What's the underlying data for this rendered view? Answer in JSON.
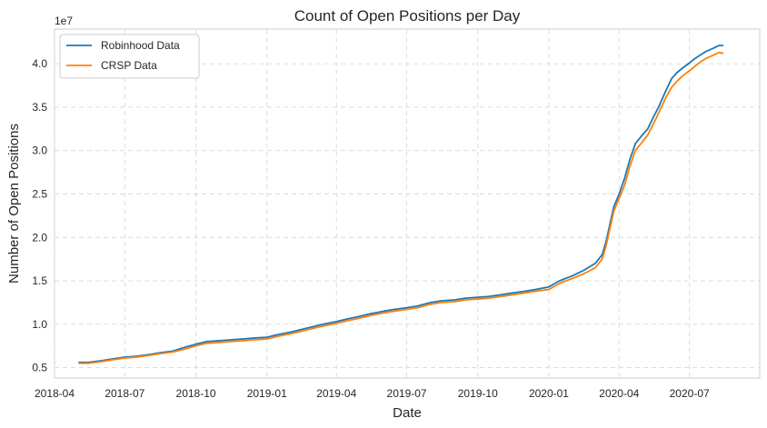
{
  "chart_data": {
    "type": "line",
    "title": "Count of Open Positions per Day",
    "xlabel": "Date",
    "ylabel": "Number of Open Positions",
    "y_multiplier_label": "1e7",
    "xlim": [
      "2018-04-01",
      "2020-09-30"
    ],
    "ylim": [
      3.8,
      44.0
    ],
    "x_ticks": [
      "2018-04",
      "2018-07",
      "2018-10",
      "2019-01",
      "2019-04",
      "2019-07",
      "2019-10",
      "2020-01",
      "2020-04",
      "2020-07"
    ],
    "y_ticks": [
      {
        "value": 5,
        "label": "0.5"
      },
      {
        "value": 10,
        "label": "1.0"
      },
      {
        "value": 15,
        "label": "1.5"
      },
      {
        "value": 20,
        "label": "2.0"
      },
      {
        "value": 25,
        "label": "2.5"
      },
      {
        "value": 30,
        "label": "3.0"
      },
      {
        "value": 35,
        "label": "3.5"
      },
      {
        "value": 40,
        "label": "4.0"
      }
    ],
    "grid": true,
    "legend_position": "top-left",
    "series": [
      {
        "name": "Robinhood Data",
        "color": "#1f77b4",
        "points": [
          [
            "2018-05-02",
            5.6
          ],
          [
            "2018-05-15",
            5.6
          ],
          [
            "2018-06-01",
            5.8
          ],
          [
            "2018-06-15",
            6.0
          ],
          [
            "2018-07-01",
            6.2
          ],
          [
            "2018-07-15",
            6.3
          ],
          [
            "2018-08-01",
            6.5
          ],
          [
            "2018-08-15",
            6.7
          ],
          [
            "2018-09-01",
            6.9
          ],
          [
            "2018-09-15",
            7.3
          ],
          [
            "2018-10-01",
            7.7
          ],
          [
            "2018-10-15",
            8.0
          ],
          [
            "2018-11-01",
            8.1
          ],
          [
            "2018-11-15",
            8.2
          ],
          [
            "2018-12-01",
            8.3
          ],
          [
            "2018-12-15",
            8.4
          ],
          [
            "2019-01-01",
            8.5
          ],
          [
            "2019-01-15",
            8.8
          ],
          [
            "2019-02-01",
            9.1
          ],
          [
            "2019-02-15",
            9.4
          ],
          [
            "2019-03-01",
            9.7
          ],
          [
            "2019-03-15",
            10.0
          ],
          [
            "2019-04-01",
            10.3
          ],
          [
            "2019-04-15",
            10.6
          ],
          [
            "2019-05-01",
            10.9
          ],
          [
            "2019-05-15",
            11.2
          ],
          [
            "2019-06-01",
            11.5
          ],
          [
            "2019-06-15",
            11.7
          ],
          [
            "2019-07-01",
            11.9
          ],
          [
            "2019-07-15",
            12.1
          ],
          [
            "2019-08-01",
            12.5
          ],
          [
            "2019-08-15",
            12.7
          ],
          [
            "2019-09-01",
            12.8
          ],
          [
            "2019-09-15",
            13.0
          ],
          [
            "2019-10-01",
            13.1
          ],
          [
            "2019-10-15",
            13.2
          ],
          [
            "2019-11-01",
            13.4
          ],
          [
            "2019-11-15",
            13.6
          ],
          [
            "2019-12-01",
            13.8
          ],
          [
            "2019-12-15",
            14.0
          ],
          [
            "2020-01-01",
            14.3
          ],
          [
            "2020-01-15",
            15.0
          ],
          [
            "2020-02-01",
            15.6
          ],
          [
            "2020-02-15",
            16.2
          ],
          [
            "2020-03-01",
            17.0
          ],
          [
            "2020-03-10",
            18.0
          ],
          [
            "2020-03-15",
            19.5
          ],
          [
            "2020-03-20",
            21.5
          ],
          [
            "2020-03-25",
            23.5
          ],
          [
            "2020-04-01",
            25.0
          ],
          [
            "2020-04-08",
            26.8
          ],
          [
            "2020-04-15",
            29.0
          ],
          [
            "2020-04-22",
            30.8
          ],
          [
            "2020-05-01",
            31.8
          ],
          [
            "2020-05-08",
            32.5
          ],
          [
            "2020-05-15",
            33.8
          ],
          [
            "2020-05-22",
            35.0
          ],
          [
            "2020-06-01",
            37.0
          ],
          [
            "2020-06-08",
            38.3
          ],
          [
            "2020-06-15",
            39.0
          ],
          [
            "2020-06-22",
            39.5
          ],
          [
            "2020-07-01",
            40.1
          ],
          [
            "2020-07-08",
            40.6
          ],
          [
            "2020-07-15",
            41.0
          ],
          [
            "2020-07-22",
            41.4
          ],
          [
            "2020-08-01",
            41.8
          ],
          [
            "2020-08-08",
            42.1
          ],
          [
            "2020-08-14",
            42.1
          ]
        ]
      },
      {
        "name": "CRSP Data",
        "color": "#ff7f0e",
        "points": [
          [
            "2018-05-02",
            5.5
          ],
          [
            "2018-05-15",
            5.5
          ],
          [
            "2018-06-01",
            5.7
          ],
          [
            "2018-06-15",
            5.9
          ],
          [
            "2018-07-01",
            6.1
          ],
          [
            "2018-07-15",
            6.2
          ],
          [
            "2018-08-01",
            6.4
          ],
          [
            "2018-08-15",
            6.6
          ],
          [
            "2018-09-01",
            6.8
          ],
          [
            "2018-09-15",
            7.1
          ],
          [
            "2018-10-01",
            7.5
          ],
          [
            "2018-10-15",
            7.8
          ],
          [
            "2018-11-01",
            7.9
          ],
          [
            "2018-11-15",
            8.0
          ],
          [
            "2018-12-01",
            8.1
          ],
          [
            "2018-12-15",
            8.2
          ],
          [
            "2019-01-01",
            8.3
          ],
          [
            "2019-01-15",
            8.6
          ],
          [
            "2019-02-01",
            8.9
          ],
          [
            "2019-02-15",
            9.2
          ],
          [
            "2019-03-01",
            9.5
          ],
          [
            "2019-03-15",
            9.8
          ],
          [
            "2019-04-01",
            10.1
          ],
          [
            "2019-04-15",
            10.4
          ],
          [
            "2019-05-01",
            10.7
          ],
          [
            "2019-05-15",
            11.0
          ],
          [
            "2019-06-01",
            11.3
          ],
          [
            "2019-06-15",
            11.5
          ],
          [
            "2019-07-01",
            11.7
          ],
          [
            "2019-07-15",
            11.9
          ],
          [
            "2019-08-01",
            12.3
          ],
          [
            "2019-08-15",
            12.5
          ],
          [
            "2019-09-01",
            12.6
          ],
          [
            "2019-09-15",
            12.8
          ],
          [
            "2019-10-01",
            12.9
          ],
          [
            "2019-10-15",
            13.0
          ],
          [
            "2019-11-01",
            13.2
          ],
          [
            "2019-11-15",
            13.4
          ],
          [
            "2019-12-01",
            13.6
          ],
          [
            "2019-12-15",
            13.8
          ],
          [
            "2020-01-01",
            14.0
          ],
          [
            "2020-01-15",
            14.7
          ],
          [
            "2020-02-01",
            15.3
          ],
          [
            "2020-02-15",
            15.8
          ],
          [
            "2020-03-01",
            16.5
          ],
          [
            "2020-03-10",
            17.5
          ],
          [
            "2020-03-15",
            19.0
          ],
          [
            "2020-03-20",
            21.0
          ],
          [
            "2020-03-25",
            23.0
          ],
          [
            "2020-04-01",
            24.5
          ],
          [
            "2020-04-08",
            26.0
          ],
          [
            "2020-04-15",
            28.2
          ],
          [
            "2020-04-22",
            30.0
          ],
          [
            "2020-05-01",
            31.0
          ],
          [
            "2020-05-08",
            31.8
          ],
          [
            "2020-05-15",
            33.0
          ],
          [
            "2020-05-22",
            34.3
          ],
          [
            "2020-06-01",
            36.2
          ],
          [
            "2020-06-08",
            37.3
          ],
          [
            "2020-06-15",
            38.0
          ],
          [
            "2020-06-22",
            38.6
          ],
          [
            "2020-07-01",
            39.2
          ],
          [
            "2020-07-08",
            39.7
          ],
          [
            "2020-07-15",
            40.2
          ],
          [
            "2020-07-22",
            40.6
          ],
          [
            "2020-08-01",
            41.0
          ],
          [
            "2020-08-08",
            41.3
          ],
          [
            "2020-08-14",
            41.2
          ]
        ]
      }
    ]
  }
}
